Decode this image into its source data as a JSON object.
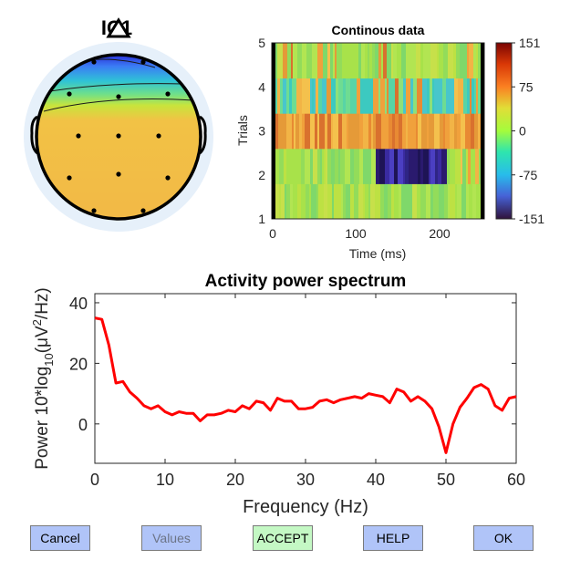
{
  "topomap": {
    "title": "IC1"
  },
  "image_panel": {
    "title": "Continous data",
    "ylabel": "Trials",
    "xlabel": "Time (ms)",
    "yticks": [
      "1",
      "2",
      "3",
      "4",
      "5"
    ],
    "xticks": [
      "0",
      "100",
      "200"
    ],
    "colorbar_ticks": [
      "151",
      "75",
      "0",
      "-75",
      "-151"
    ]
  },
  "chart_data": {
    "type": "line",
    "title": "Activity power spectrum",
    "xlabel": "Frequency (Hz)",
    "ylabel_parts": [
      "Power 10*log",
      "10",
      "(μV",
      "2",
      "/Hz)"
    ],
    "xlim": [
      0,
      60
    ],
    "ylim": [
      -13,
      43
    ],
    "xticks": [
      "0",
      "10",
      "20",
      "30",
      "40",
      "50",
      "60"
    ],
    "yticks": [
      "0",
      "20",
      "40"
    ],
    "series": [
      {
        "color": "#ff0000",
        "x": [
          0,
          1,
          2,
          3,
          4,
          5,
          6,
          7,
          8,
          9,
          10,
          11,
          12,
          13,
          14,
          15,
          16,
          17,
          18,
          19,
          20,
          21,
          22,
          23,
          24,
          25,
          26,
          27,
          28,
          29,
          30,
          31,
          32,
          33,
          34,
          35,
          36,
          37,
          38,
          39,
          40,
          41,
          42,
          43,
          44,
          45,
          46,
          47,
          48,
          49,
          50,
          51,
          52,
          53,
          54,
          55,
          56,
          57,
          58,
          59,
          60
        ],
        "y": [
          35,
          34.5,
          26,
          13.5,
          14,
          10.5,
          8.5,
          6,
          5,
          6,
          4,
          3,
          4,
          3.5,
          3.5,
          1,
          3,
          3,
          3.5,
          4.5,
          4,
          6,
          5,
          7.5,
          7,
          4.5,
          8.5,
          7.5,
          7.5,
          5,
          5,
          5.5,
          7.5,
          8,
          7,
          8,
          8.5,
          9,
          8.5,
          10,
          9.5,
          9,
          7,
          11.5,
          10.5,
          7.5,
          9,
          7.5,
          5,
          -1,
          -9.5,
          0,
          5.5,
          8.5,
          12,
          13,
          11.5,
          6,
          4.5,
          8.5,
          9
        ]
      }
    ]
  },
  "buttons": {
    "cancel": "Cancel",
    "values": "Values",
    "accept": "ACCEPT",
    "help": "HELP",
    "ok": "OK"
  }
}
